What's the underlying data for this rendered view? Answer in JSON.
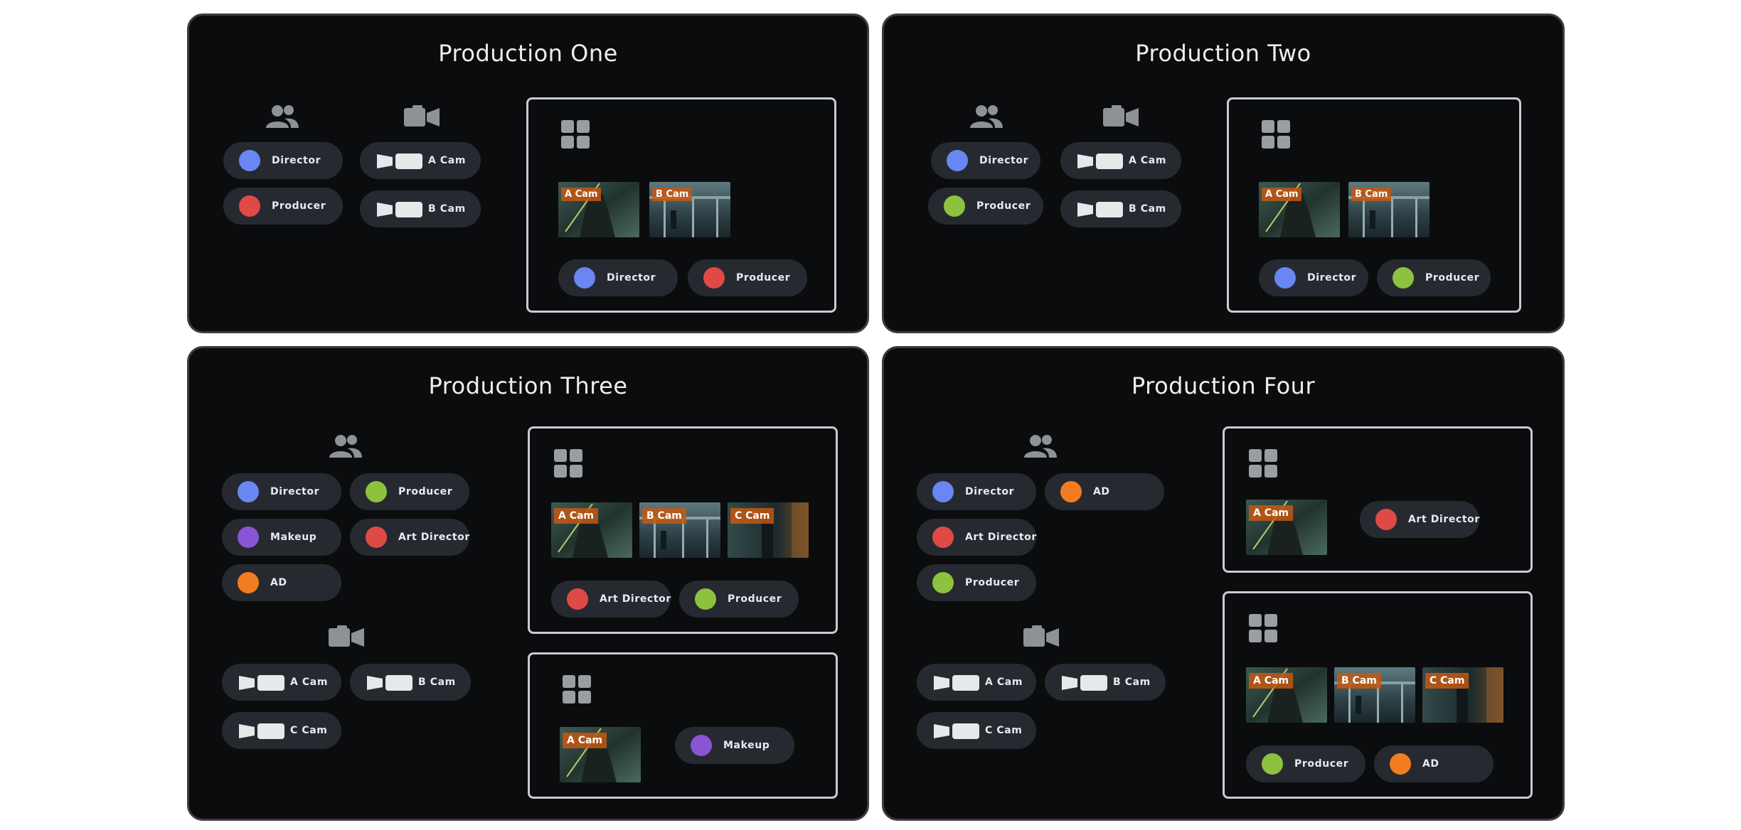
{
  "panels": [
    {
      "title": "Production One",
      "people": [
        {
          "label": "Director",
          "color": "#6a86f2"
        },
        {
          "label": "Producer",
          "color": "#e04a46"
        }
      ],
      "cameras": [
        {
          "label": "A Cam"
        },
        {
          "label": "B Cam"
        }
      ],
      "frames": [
        {
          "thumbs": [
            "A Cam",
            "B Cam"
          ],
          "people": [
            {
              "label": "Director",
              "color": "#6a86f2"
            },
            {
              "label": "Producer",
              "color": "#e04a46"
            }
          ]
        }
      ]
    },
    {
      "title": "Production Two",
      "people": [
        {
          "label": "Director",
          "color": "#6a86f2"
        },
        {
          "label": "Producer",
          "color": "#8dc23f"
        }
      ],
      "cameras": [
        {
          "label": "A Cam"
        },
        {
          "label": "B Cam"
        }
      ],
      "frames": [
        {
          "thumbs": [
            "A Cam",
            "B Cam"
          ],
          "people": [
            {
              "label": "Director",
              "color": "#6a86f2"
            },
            {
              "label": "Producer",
              "color": "#8dc23f"
            }
          ]
        }
      ]
    },
    {
      "title": "Production Three",
      "people": [
        {
          "label": "Director",
          "color": "#6a86f2"
        },
        {
          "label": "Producer",
          "color": "#8dc23f"
        },
        {
          "label": "Makeup",
          "color": "#8a54d6"
        },
        {
          "label": "Art Director",
          "color": "#e04a46"
        },
        {
          "label": "AD",
          "color": "#f47c20"
        }
      ],
      "cameras": [
        {
          "label": "A Cam"
        },
        {
          "label": "B Cam"
        },
        {
          "label": "C Cam"
        }
      ],
      "frames": [
        {
          "thumbs": [
            "A Cam",
            "B Cam",
            "C Cam"
          ],
          "people": [
            {
              "label": "Art Director",
              "color": "#e04a46"
            },
            {
              "label": "Producer",
              "color": "#8dc23f"
            }
          ]
        },
        {
          "thumbs": [
            "A Cam"
          ],
          "people": [
            {
              "label": "Makeup",
              "color": "#8a54d6"
            }
          ]
        }
      ]
    },
    {
      "title": "Production Four",
      "people": [
        {
          "label": "Director",
          "color": "#6a86f2"
        },
        {
          "label": "AD",
          "color": "#f47c20"
        },
        {
          "label": "Art Director",
          "color": "#e04a46"
        },
        {
          "label": "Producer",
          "color": "#8dc23f"
        }
      ],
      "cameras": [
        {
          "label": "A Cam"
        },
        {
          "label": "B Cam"
        },
        {
          "label": "C Cam"
        }
      ],
      "frames": [
        {
          "thumbs": [
            "A Cam"
          ],
          "people": [
            {
              "label": "Art Director",
              "color": "#e04a46"
            }
          ]
        },
        {
          "thumbs": [
            "A Cam",
            "B Cam",
            "C Cam"
          ],
          "people": [
            {
              "label": "Producer",
              "color": "#8dc23f"
            },
            {
              "label": "AD",
              "color": "#f47c20"
            }
          ]
        }
      ]
    }
  ],
  "icons": {
    "people": "people-group-icon",
    "camera": "video-camera-icon",
    "layout": "grid-layout-icon"
  }
}
